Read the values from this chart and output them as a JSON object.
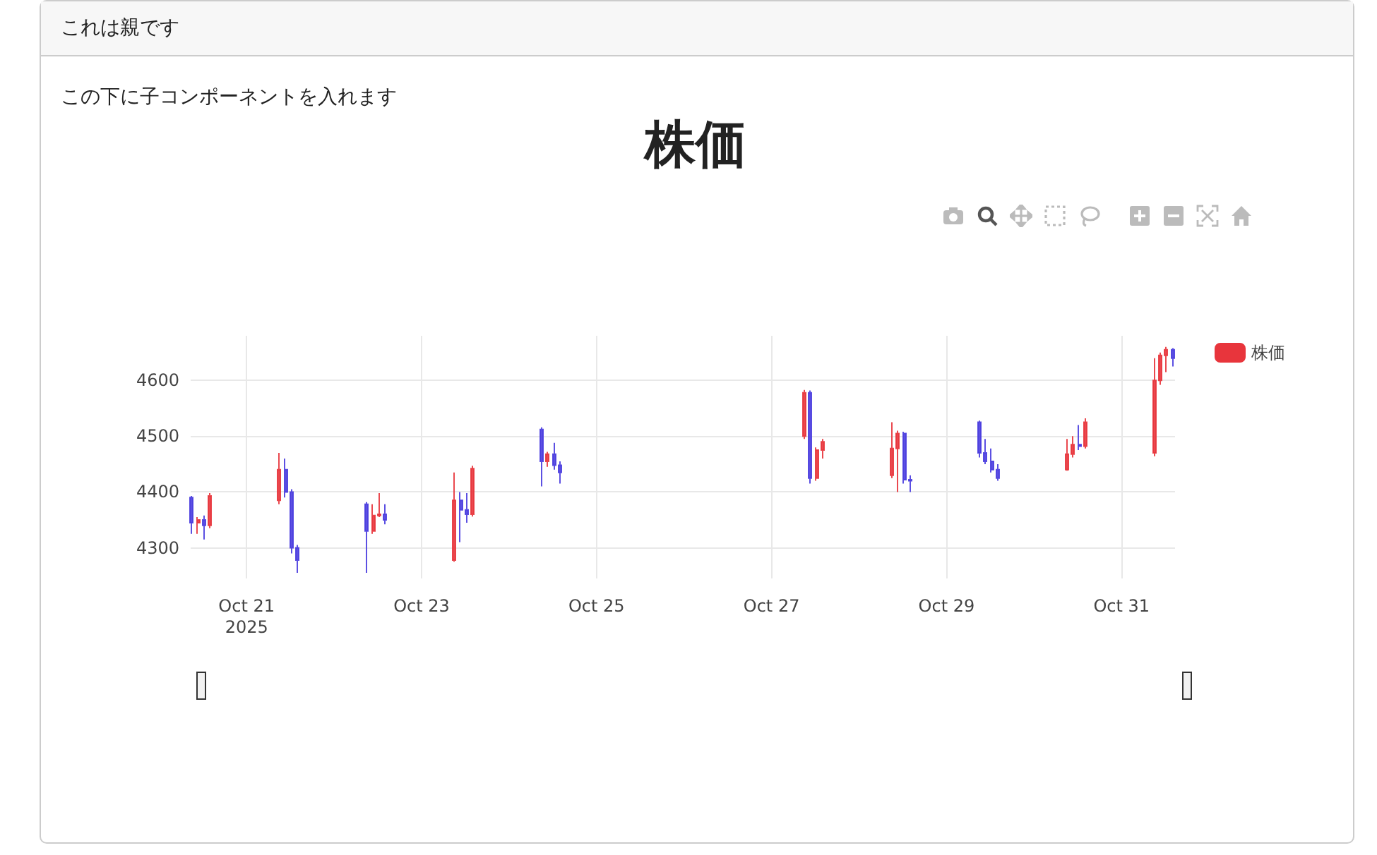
{
  "chart_data": {
    "type": "candlestick",
    "title": "株価",
    "annotations": [
      "これは親です",
      "この下に子コンポーネントを入れます"
    ],
    "x": [
      "2025-10-20T09:00",
      "2025-10-20T10:40",
      "2025-10-20T12:20",
      "2025-10-20T14:00",
      "2025-10-21T09:00",
      "2025-10-21T10:40",
      "2025-10-21T12:20",
      "2025-10-21T14:00",
      "2025-10-22T09:00",
      "2025-10-22T10:40",
      "2025-10-22T12:20",
      "2025-10-22T14:00",
      "2025-10-23T09:00",
      "2025-10-23T10:40",
      "2025-10-23T12:20",
      "2025-10-23T14:00",
      "2025-10-24T09:00",
      "2025-10-24T10:40",
      "2025-10-24T12:20",
      "2025-10-24T14:00",
      "2025-10-27T09:00",
      "2025-10-27T10:40",
      "2025-10-27T12:20",
      "2025-10-27T14:00",
      "2025-10-28T09:00",
      "2025-10-28T10:40",
      "2025-10-28T12:20",
      "2025-10-28T14:00",
      "2025-10-29T09:00",
      "2025-10-29T10:40",
      "2025-10-29T12:20",
      "2025-10-29T14:00",
      "2025-10-30T09:00",
      "2025-10-30T10:40",
      "2025-10-30T12:20",
      "2025-10-30T14:00",
      "2025-10-31T09:00",
      "2025-10-31T10:40",
      "2025-10-31T12:20",
      "2025-10-31T14:00"
    ],
    "series": [
      {
        "name": "株価",
        "color": "#e8353c",
        "ohlc": [
          [
            4390,
            4393,
            4325,
            4345
          ],
          [
            4345,
            4355,
            4325,
            4350
          ],
          [
            4350,
            4358,
            4315,
            4340
          ],
          [
            4340,
            4398,
            4335,
            4393
          ],
          [
            4385,
            4470,
            4378,
            4440
          ],
          [
            4440,
            4460,
            4390,
            4400
          ],
          [
            4400,
            4405,
            4290,
            4300
          ],
          [
            4300,
            4305,
            4255,
            4278
          ],
          [
            4378,
            4382,
            4255,
            4330
          ],
          [
            4330,
            4378,
            4325,
            4358
          ],
          [
            4358,
            4398,
            4355,
            4360
          ],
          [
            4360,
            4378,
            4342,
            4350
          ],
          [
            4278,
            4435,
            4275,
            4385
          ],
          [
            4385,
            4400,
            4310,
            4368
          ],
          [
            4368,
            4398,
            4345,
            4360
          ],
          [
            4360,
            4447,
            4356,
            4442
          ],
          [
            4512,
            4516,
            4410,
            4455
          ],
          [
            4455,
            4472,
            4445,
            4468
          ],
          [
            4468,
            4488,
            4440,
            4448
          ],
          [
            4448,
            4455,
            4415,
            4435
          ],
          [
            4500,
            4583,
            4495,
            4578
          ],
          [
            4578,
            4582,
            4415,
            4425
          ],
          [
            4425,
            4480,
            4420,
            4475
          ],
          [
            4475,
            4495,
            4460,
            4490
          ],
          [
            4430,
            4525,
            4425,
            4478
          ],
          [
            4478,
            4510,
            4400,
            4505
          ],
          [
            4505,
            4508,
            4415,
            4422
          ],
          [
            4422,
            4430,
            4400,
            4420
          ],
          [
            4525,
            4528,
            4462,
            4470
          ],
          [
            4470,
            4495,
            4450,
            4455
          ],
          [
            4455,
            4478,
            4435,
            4440
          ],
          [
            4440,
            4450,
            4420,
            4425
          ],
          [
            4440,
            4495,
            4438,
            4468
          ],
          [
            4468,
            4500,
            4462,
            4485
          ],
          [
            4485,
            4520,
            4475,
            4482
          ],
          [
            4482,
            4532,
            4478,
            4525
          ],
          [
            4470,
            4640,
            4464,
            4600
          ],
          [
            4600,
            4650,
            4592,
            4645
          ],
          [
            4645,
            4660,
            4615,
            4655
          ],
          [
            4655,
            4658,
            4625,
            4640
          ]
        ],
        "colors": [
          "#4a3ddf",
          "#e8353c",
          "#4a3ddf",
          "#e8353c",
          "#e8353c",
          "#4a3ddf",
          "#4a3ddf",
          "#4a3ddf",
          "#4a3ddf",
          "#e8353c",
          "#e8353c",
          "#4a3ddf",
          "#e8353c",
          "#4a3ddf",
          "#4a3ddf",
          "#e8353c",
          "#4a3ddf",
          "#e8353c",
          "#4a3ddf",
          "#4a3ddf",
          "#e8353c",
          "#4a3ddf",
          "#e8353c",
          "#e8353c",
          "#e8353c",
          "#e8353c",
          "#4a3ddf",
          "#4a3ddf",
          "#4a3ddf",
          "#4a3ddf",
          "#4a3ddf",
          "#4a3ddf",
          "#e8353c",
          "#e8353c",
          "#4a3ddf",
          "#e8353c",
          "#e8353c",
          "#e8353c",
          "#e8353c",
          "#4a3ddf"
        ]
      }
    ],
    "xlim": [
      "2025-10-20T08:40",
      "2025-10-31T14:40"
    ],
    "xticks": [
      {
        "value": "2025-10-21",
        "label": "Oct 21\n2025"
      },
      {
        "value": "2025-10-23",
        "label": "Oct 23"
      },
      {
        "value": "2025-10-25",
        "label": "Oct 25"
      },
      {
        "value": "2025-10-27",
        "label": "Oct 27"
      },
      {
        "value": "2025-10-29",
        "label": "Oct 29"
      },
      {
        "value": "2025-10-31",
        "label": "Oct 31"
      }
    ],
    "ylim": [
      4245,
      4680
    ],
    "yticks": [
      4300,
      4400,
      4500,
      4600
    ],
    "grid": true,
    "legend": "top right"
  }
}
